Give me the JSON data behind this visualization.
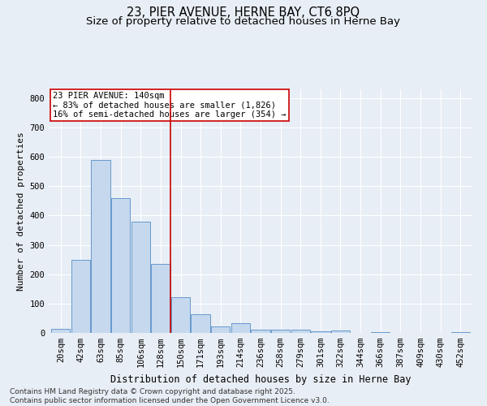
{
  "title": "23, PIER AVENUE, HERNE BAY, CT6 8PQ",
  "subtitle": "Size of property relative to detached houses in Herne Bay",
  "xlabel": "Distribution of detached houses by size in Herne Bay",
  "ylabel": "Number of detached properties",
  "footer_line1": "Contains HM Land Registry data © Crown copyright and database right 2025.",
  "footer_line2": "Contains public sector information licensed under the Open Government Licence v3.0.",
  "categories": [
    "20sqm",
    "42sqm",
    "63sqm",
    "85sqm",
    "106sqm",
    "128sqm",
    "150sqm",
    "171sqm",
    "193sqm",
    "214sqm",
    "236sqm",
    "258sqm",
    "279sqm",
    "301sqm",
    "322sqm",
    "344sqm",
    "366sqm",
    "387sqm",
    "409sqm",
    "430sqm",
    "452sqm"
  ],
  "values": [
    15,
    248,
    588,
    458,
    380,
    235,
    122,
    65,
    22,
    33,
    12,
    12,
    10,
    5,
    8,
    0,
    3,
    0,
    0,
    0,
    2
  ],
  "bar_color": "#c5d8ee",
  "bar_edge_color": "#6699cc",
  "background_color": "#e8eef5",
  "grid_color": "#ffffff",
  "vline_x_index": 5.5,
  "vline_color": "#cc0000",
  "annotation_text": "23 PIER AVENUE: 140sqm\n← 83% of detached houses are smaller (1,826)\n16% of semi-detached houses are larger (354) →",
  "annotation_box_color": "#ffffff",
  "annotation_box_edge_color": "#cc0000",
  "ylim": [
    0,
    830
  ],
  "yticks": [
    0,
    100,
    200,
    300,
    400,
    500,
    600,
    700,
    800
  ],
  "title_fontsize": 10.5,
  "subtitle_fontsize": 9.5,
  "ylabel_fontsize": 8,
  "xlabel_fontsize": 8.5,
  "tick_fontsize": 7.5,
  "annotation_fontsize": 7.5,
  "footer_fontsize": 6.5
}
